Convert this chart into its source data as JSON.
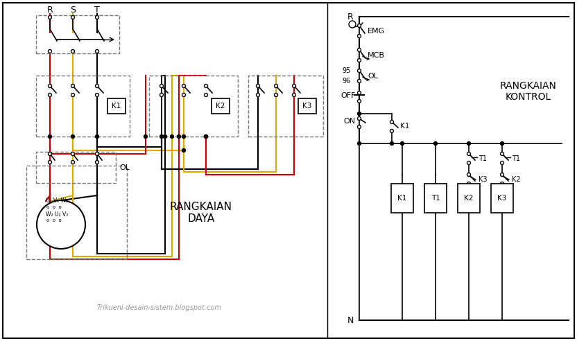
{
  "bg_color": "#ffffff",
  "line_color": "#000000",
  "red_color": "#cc0000",
  "yellow_color": "#ddaa00",
  "gray_color": "#999999",
  "dash_color": "#777777",
  "title_daya": "RANGKAIAN\nDAYA",
  "title_kontrol": "RANGKAIAN\nKONTROL",
  "watermark": "Trikueni-desain-sistem.blogspot.com",
  "fig_width": 8.32,
  "fig_height": 4.92,
  "dpi": 100
}
